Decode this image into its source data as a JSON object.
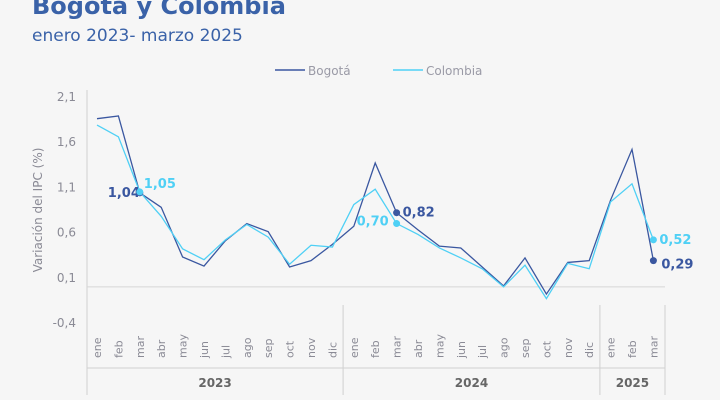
{
  "chart_data": {
    "type": "line",
    "title": "Bogotá y Colombia",
    "subtitle": "enero 2023- marzo 2025",
    "ylabel": "Variación del IPC (%)",
    "xlabel": "",
    "ylim": [
      -0.4,
      2.1
    ],
    "yticks": [
      "2,1",
      "1,6",
      "1,1",
      "0,6",
      "0,1",
      "-0,4"
    ],
    "ytick_values": [
      2.1,
      1.6,
      1.1,
      0.6,
      0.1,
      -0.4
    ],
    "grid": false,
    "legend_placement": "top-center",
    "categories": [
      "ene",
      "feb",
      "mar",
      "abr",
      "may",
      "jun",
      "jul",
      "ago",
      "sep",
      "oct",
      "nov",
      "dic",
      "ene",
      "feb",
      "mar",
      "abr",
      "may",
      "jun",
      "jul",
      "ago",
      "sep",
      "oct",
      "nov",
      "dic",
      "ene",
      "feb",
      "mar"
    ],
    "years": [
      {
        "label": "2023",
        "months": 12
      },
      {
        "label": "2024",
        "months": 12
      },
      {
        "label": "2025",
        "months": 3
      }
    ],
    "series": [
      {
        "name": "Bogotá",
        "color": "#3a57a0",
        "values": [
          1.86,
          1.89,
          1.04,
          0.88,
          0.33,
          0.23,
          0.51,
          0.7,
          0.61,
          0.22,
          0.29,
          0.47,
          0.67,
          1.37,
          0.82,
          0.63,
          0.45,
          0.43,
          0.22,
          0.01,
          0.32,
          -0.08,
          0.27,
          0.29,
          0.96,
          1.52,
          0.29
        ]
      },
      {
        "name": "Colombia",
        "color": "#4fd0f5",
        "values": [
          1.79,
          1.66,
          1.05,
          0.78,
          0.42,
          0.3,
          0.52,
          0.69,
          0.55,
          0.25,
          0.46,
          0.44,
          0.91,
          1.08,
          0.7,
          0.58,
          0.43,
          0.32,
          0.2,
          0.0,
          0.24,
          -0.13,
          0.26,
          0.2,
          0.94,
          1.14,
          0.52
        ]
      }
    ],
    "annotations": [
      {
        "series": "Bogotá",
        "index": 2,
        "label": "1,04"
      },
      {
        "series": "Colombia",
        "index": 2,
        "label": "1,05"
      },
      {
        "series": "Bogotá",
        "index": 14,
        "label": "0,82"
      },
      {
        "series": "Colombia",
        "index": 14,
        "label": "0,70"
      },
      {
        "series": "Colombia",
        "index": 26,
        "label": "0,52"
      },
      {
        "series": "Bogotá",
        "index": 26,
        "label": "0,29"
      }
    ]
  }
}
